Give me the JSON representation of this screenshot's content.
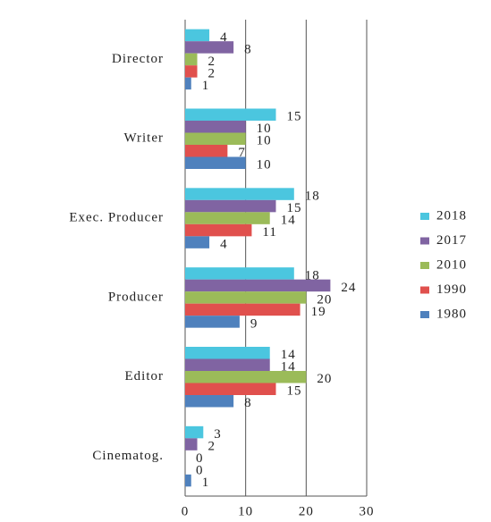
{
  "chart_data": {
    "type": "hbar",
    "categories": [
      "Director",
      "Writer",
      "Exec. Producer",
      "Producer",
      "Editor",
      "Cinematog."
    ],
    "series": [
      {
        "name": "2018",
        "color": "#4bc6df",
        "values": [
          4,
          15,
          18,
          18,
          14,
          3
        ]
      },
      {
        "name": "2017",
        "color": "#8064a2",
        "values": [
          8,
          10,
          15,
          24,
          14,
          2
        ]
      },
      {
        "name": "2010",
        "color": "#9bbb59",
        "values": [
          2,
          10,
          14,
          20,
          20,
          0
        ]
      },
      {
        "name": "1990",
        "color": "#e0504d",
        "values": [
          2,
          7,
          11,
          19,
          15,
          0
        ]
      },
      {
        "name": "1980",
        "color": "#4f81bd",
        "values": [
          1,
          10,
          4,
          9,
          8,
          1
        ]
      }
    ],
    "xlim": [
      0,
      30
    ],
    "xticks": [
      0,
      10,
      20,
      30
    ],
    "grid": true
  }
}
